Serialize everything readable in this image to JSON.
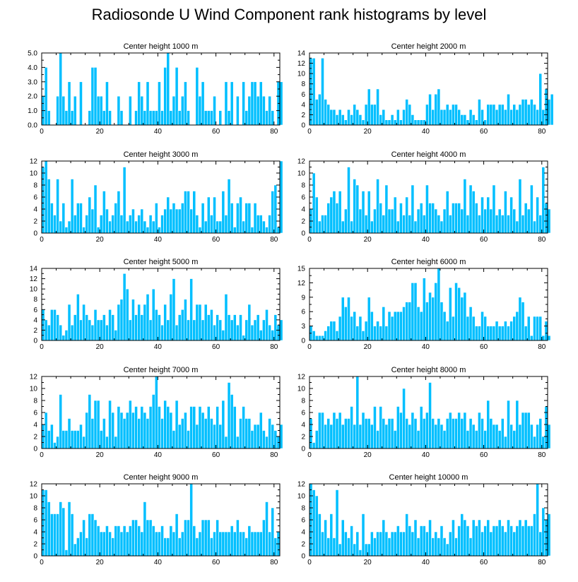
{
  "title": "Radiosonde U Wind Component rank histograms by level",
  "colors": {
    "bar": "#00BFFF",
    "bar_edge": "#ffffff",
    "axis": "#000000",
    "background": "#ffffff"
  },
  "chart_data": [
    {
      "type": "bar",
      "title": "Center height 1000 m",
      "xlim": [
        0,
        82
      ],
      "ylim": [
        0,
        5
      ],
      "xticks": [
        0,
        20,
        40,
        60,
        80
      ],
      "yticks": [
        0,
        1,
        2,
        3,
        4,
        5
      ],
      "ytick_labels": [
        "0.0",
        "1.0",
        "2.0",
        "3.0",
        "4.0",
        "5.0"
      ],
      "values": [
        2,
        4,
        1,
        0,
        0,
        2,
        5,
        2,
        1,
        3,
        1,
        2,
        0,
        3,
        0,
        0,
        1,
        4,
        4,
        2,
        2,
        1,
        3,
        1,
        0,
        0,
        2,
        1,
        0,
        0,
        2,
        0,
        1,
        3,
        2,
        1,
        3,
        1,
        1,
        1,
        3,
        1,
        4,
        5,
        1,
        2,
        4,
        1,
        2,
        3,
        1,
        0,
        0,
        4,
        2,
        3,
        1,
        1,
        1,
        2,
        0,
        1,
        0,
        3,
        1,
        3,
        0,
        2,
        0,
        3,
        1,
        2,
        3,
        3,
        2,
        3,
        2,
        1,
        2,
        1,
        0,
        3,
        3
      ]
    },
    {
      "type": "bar",
      "title": "Center height 2000 m",
      "xlim": [
        0,
        82
      ],
      "ylim": [
        0,
        14
      ],
      "xticks": [
        0,
        20,
        40,
        60,
        80
      ],
      "yticks": [
        0,
        2,
        4,
        6,
        8,
        10,
        12,
        14
      ],
      "values": [
        13,
        13,
        5,
        6,
        13,
        5,
        4,
        3,
        3,
        2,
        3,
        2,
        1,
        3,
        2,
        4,
        3,
        2,
        1,
        4,
        7,
        4,
        4,
        7,
        2,
        3,
        1,
        1,
        2,
        1,
        3,
        1,
        3,
        5,
        4,
        2,
        1,
        1,
        1,
        1,
        4,
        6,
        3,
        6,
        7,
        3,
        3,
        4,
        3,
        4,
        4,
        3,
        2,
        2,
        1,
        3,
        2,
        1,
        5,
        3,
        1,
        4,
        4,
        4,
        3,
        4,
        4,
        3,
        6,
        3,
        4,
        3,
        4,
        5,
        5,
        4,
        5,
        4,
        3,
        10,
        3,
        7,
        5,
        6
      ]
    },
    {
      "type": "bar",
      "title": "Center height 3000 m",
      "xlim": [
        0,
        82
      ],
      "ylim": [
        0,
        12
      ],
      "xticks": [
        0,
        20,
        40,
        60,
        80
      ],
      "yticks": [
        0,
        2,
        4,
        6,
        8,
        10,
        12
      ],
      "values": [
        11,
        12,
        9,
        5,
        3,
        9,
        2,
        5,
        1,
        2,
        9,
        3,
        5,
        5,
        1,
        3,
        6,
        4,
        8,
        1,
        3,
        7,
        4,
        2,
        3,
        5,
        7,
        3,
        11,
        2,
        3,
        4,
        2,
        3,
        4,
        2,
        1,
        3,
        2,
        5,
        1,
        3,
        4,
        6,
        4,
        5,
        4,
        4,
        5,
        7,
        7,
        4,
        7,
        3,
        1,
        5,
        2,
        6,
        3,
        6,
        2,
        2,
        7,
        3,
        9,
        5,
        1,
        5,
        6,
        2,
        5,
        5,
        1,
        5,
        3,
        3,
        2,
        1,
        3,
        7,
        8,
        1,
        12
      ]
    },
    {
      "type": "bar",
      "title": "Center height 4000 m",
      "xlim": [
        0,
        82
      ],
      "ylim": [
        0,
        12
      ],
      "xticks": [
        0,
        20,
        40,
        60,
        80
      ],
      "yticks": [
        0,
        2,
        4,
        6,
        8,
        10,
        12
      ],
      "values": [
        4,
        10,
        6,
        2,
        3,
        3,
        5,
        6,
        7,
        5,
        7,
        2,
        4,
        11,
        2,
        9,
        8,
        4,
        7,
        3,
        7,
        2,
        4,
        9,
        5,
        3,
        8,
        4,
        4,
        6,
        2,
        5,
        3,
        6,
        3,
        8,
        2,
        4,
        5,
        3,
        8,
        5,
        5,
        4,
        3,
        2,
        4,
        7,
        3,
        5,
        5,
        5,
        4,
        9,
        3,
        8,
        7,
        5,
        3,
        6,
        4,
        6,
        4,
        8,
        3,
        4,
        3,
        7,
        3,
        6,
        4,
        2,
        9,
        3,
        5,
        4,
        8,
        2,
        6,
        3,
        11,
        5,
        4
      ]
    },
    {
      "type": "bar",
      "title": "Center height 5000 m",
      "xlim": [
        0,
        82
      ],
      "ylim": [
        0,
        14
      ],
      "xticks": [
        0,
        20,
        40,
        60,
        80
      ],
      "yticks": [
        0,
        2,
        4,
        6,
        8,
        10,
        12,
        14
      ],
      "values": [
        6,
        4,
        3,
        6,
        6,
        5,
        3,
        1,
        2,
        7,
        3,
        5,
        9,
        4,
        7,
        5,
        4,
        3,
        6,
        4,
        4,
        5,
        3,
        6,
        5,
        2,
        7,
        8,
        13,
        10,
        4,
        8,
        5,
        7,
        5,
        7,
        9,
        4,
        10,
        6,
        5,
        3,
        7,
        4,
        9,
        12,
        3,
        5,
        6,
        8,
        4,
        12,
        4,
        7,
        7,
        4,
        7,
        5,
        6,
        3,
        5,
        4,
        2,
        9,
        5,
        4,
        5,
        3,
        5,
        1,
        4,
        7,
        3,
        4,
        5,
        2,
        4,
        6,
        3,
        2,
        5,
        3,
        4
      ]
    },
    {
      "type": "bar",
      "title": "Center height 6000 m",
      "xlim": [
        0,
        82
      ],
      "ylim": [
        0,
        15
      ],
      "xticks": [
        0,
        20,
        40,
        60,
        80
      ],
      "yticks": [
        0,
        3,
        6,
        9,
        12,
        15
      ],
      "values": [
        3,
        2,
        1,
        1,
        1,
        2,
        3,
        4,
        4,
        2,
        5,
        9,
        7,
        9,
        5,
        6,
        3,
        5,
        2,
        4,
        9,
        6,
        3,
        4,
        3,
        7,
        3,
        6,
        5,
        6,
        6,
        6,
        7,
        8,
        8,
        12,
        12,
        7,
        6,
        13,
        8,
        10,
        9,
        12,
        15,
        8,
        6,
        4,
        11,
        5,
        12,
        11,
        9,
        10,
        5,
        7,
        5,
        3,
        3,
        6,
        5,
        3,
        3,
        3,
        4,
        3,
        3,
        4,
        3,
        4,
        5,
        6,
        9,
        8,
        3,
        5,
        1,
        5,
        5,
        5,
        1,
        4,
        1
      ]
    },
    {
      "type": "bar",
      "title": "Center height 7000 m",
      "xlim": [
        0,
        82
      ],
      "ylim": [
        0,
        12
      ],
      "xticks": [
        0,
        20,
        40,
        60,
        80
      ],
      "yticks": [
        0,
        2,
        4,
        6,
        8,
        10,
        12
      ],
      "values": [
        4,
        6,
        3,
        4,
        1,
        2,
        9,
        3,
        3,
        5,
        3,
        3,
        3,
        4,
        2,
        6,
        9,
        5,
        8,
        8,
        3,
        5,
        2,
        8,
        6,
        2,
        7,
        6,
        5,
        6,
        8,
        6,
        7,
        5,
        7,
        6,
        5,
        7,
        9,
        12,
        7,
        5,
        8,
        7,
        6,
        3,
        8,
        4,
        5,
        6,
        3,
        7,
        7,
        4,
        7,
        6,
        5,
        7,
        5,
        4,
        7,
        4,
        8,
        2,
        11,
        9,
        7,
        2,
        5,
        7,
        5,
        5,
        3,
        4,
        4,
        6,
        3,
        2,
        5,
        4,
        3,
        2,
        4
      ]
    },
    {
      "type": "bar",
      "title": "Center height 8000 m",
      "xlim": [
        0,
        82
      ],
      "ylim": [
        0,
        12
      ],
      "xticks": [
        0,
        20,
        40,
        60,
        80
      ],
      "yticks": [
        0,
        2,
        4,
        6,
        8,
        10,
        12
      ],
      "values": [
        5,
        1,
        3,
        6,
        6,
        4,
        5,
        4,
        6,
        5,
        6,
        4,
        5,
        5,
        7,
        4,
        12,
        4,
        6,
        5,
        5,
        4,
        7,
        3,
        7,
        5,
        4,
        5,
        5,
        3,
        7,
        6,
        10,
        5,
        4,
        6,
        5,
        3,
        7,
        5,
        6,
        11,
        5,
        4,
        5,
        4,
        3,
        5,
        6,
        5,
        5,
        6,
        5,
        6,
        3,
        5,
        4,
        3,
        6,
        5,
        3,
        8,
        5,
        4,
        4,
        3,
        5,
        2,
        8,
        4,
        3,
        8,
        4,
        6,
        6,
        6,
        4,
        2,
        4,
        5,
        2,
        7,
        4
      ]
    },
    {
      "type": "bar",
      "title": "Center height 9000 m",
      "xlim": [
        0,
        82
      ],
      "ylim": [
        0,
        12
      ],
      "xticks": [
        0,
        20,
        40,
        60,
        80
      ],
      "yticks": [
        0,
        2,
        4,
        6,
        8,
        10,
        12
      ],
      "values": [
        11,
        11,
        9,
        7,
        7,
        7,
        9,
        8,
        1,
        9,
        7,
        2,
        3,
        4,
        6,
        3,
        7,
        7,
        6,
        5,
        4,
        4,
        5,
        4,
        3,
        5,
        5,
        4,
        5,
        4,
        5,
        6,
        6,
        5,
        4,
        9,
        6,
        6,
        5,
        4,
        4,
        5,
        3,
        3,
        5,
        4,
        7,
        3,
        4,
        6,
        6,
        12,
        5,
        3,
        4,
        6,
        6,
        6,
        3,
        4,
        6,
        4,
        4,
        4,
        4,
        5,
        4,
        6,
        4,
        4,
        3,
        5,
        4,
        4,
        4,
        4,
        6,
        9,
        4,
        8,
        3,
        4
      ]
    },
    {
      "type": "bar",
      "title": "Center height 10000 m",
      "xlim": [
        0,
        82
      ],
      "ylim": [
        0,
        12
      ],
      "xticks": [
        0,
        20,
        40,
        60,
        80
      ],
      "yticks": [
        0,
        2,
        4,
        6,
        8,
        10,
        12
      ],
      "values": [
        12,
        11,
        10,
        7,
        4,
        6,
        3,
        7,
        3,
        11,
        2,
        6,
        4,
        3,
        5,
        2,
        4,
        1,
        7,
        2,
        2,
        4,
        3,
        4,
        4,
        6,
        4,
        3,
        4,
        4,
        5,
        4,
        4,
        7,
        5,
        4,
        6,
        3,
        5,
        5,
        4,
        6,
        3,
        4,
        3,
        5,
        3,
        2,
        4,
        6,
        3,
        5,
        7,
        6,
        5,
        3,
        6,
        5,
        6,
        4,
        5,
        6,
        4,
        5,
        5,
        6,
        5,
        4,
        6,
        5,
        4,
        5,
        6,
        5,
        6,
        5,
        5,
        7,
        12,
        4,
        8,
        6,
        7
      ]
    }
  ]
}
